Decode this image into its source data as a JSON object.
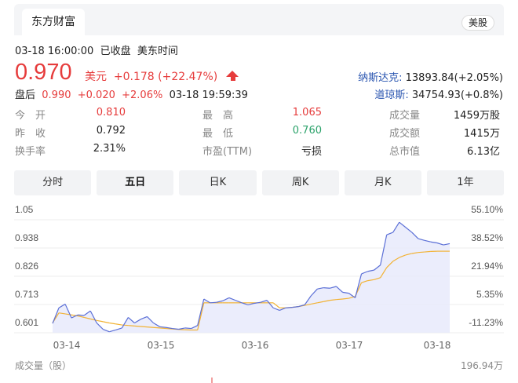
{
  "header": {
    "tab": "东方财富",
    "market_badge": "美股"
  },
  "status": {
    "time": "03-18 16:00:00",
    "state": "已收盘",
    "timezone": "美东时间"
  },
  "quote": {
    "price": "0.970",
    "currency": "美元",
    "change": "+0.178 (+22.47%)",
    "direction_icon": "arrow-up-icon"
  },
  "after_hours": {
    "label": "盘后",
    "price": "0.990",
    "change": "+0.020",
    "pct": "+2.06%",
    "time": "03-18 19:59:39"
  },
  "indices": [
    {
      "name": "纳斯达克:",
      "value": "13893.84(+2.05%)"
    },
    {
      "name": "道琼斯:",
      "value": "34754.93(+0.8%)"
    }
  ],
  "stats": [
    [
      {
        "label": "今　开",
        "value": "0.810",
        "color": "red"
      },
      {
        "label": "最　高",
        "value": "1.065",
        "color": "red"
      },
      {
        "label": "成交量",
        "value": "1459万股",
        "color": "black"
      }
    ],
    [
      {
        "label": "昨　收",
        "value": "0.792",
        "color": "black"
      },
      {
        "label": "最　低",
        "value": "0.760",
        "color": "green"
      },
      {
        "label": "成交额",
        "value": "1415万",
        "color": "black"
      }
    ],
    [
      {
        "label": "换手率",
        "value": "2.31%",
        "color": "black"
      },
      {
        "label": "市盈(TTM)",
        "value": "亏损",
        "color": "black"
      },
      {
        "label": "总市值",
        "value": "6.13亿",
        "color": "black"
      }
    ]
  ],
  "period_tabs": [
    "分时",
    "五日",
    "日K",
    "周K",
    "月K",
    "1年"
  ],
  "selected_tab": "五日",
  "chart_data": {
    "type": "line",
    "y_ticks": [
      "1.05",
      "0.938",
      "0.826",
      "0.713",
      "0.601"
    ],
    "y_pct_ticks": [
      "55.10%",
      "38.52%",
      "21.94%",
      "5.35%",
      "-11.23%"
    ],
    "x_ticks": [
      "03-14",
      "03-15",
      "03-16",
      "03-17",
      "03-18"
    ],
    "ylim": [
      0.601,
      1.05
    ],
    "colors": {
      "price": "#5b6fd6",
      "average": "#f2b233",
      "fill": "#e6e9fb"
    },
    "series": [
      {
        "key": "price",
        "values": [
          0.638,
          0.7,
          0.715,
          0.66,
          0.672,
          0.67,
          0.688,
          0.64,
          0.615,
          0.605,
          0.612,
          0.62,
          0.662,
          0.64,
          0.655,
          0.665,
          0.64,
          0.625,
          0.622,
          0.618,
          0.615,
          0.62,
          0.618,
          0.63,
          0.735,
          0.72,
          0.722,
          0.728,
          0.74,
          0.73,
          0.72,
          0.712,
          0.718,
          0.722,
          0.73,
          0.7,
          0.69,
          0.7,
          0.702,
          0.705,
          0.712,
          0.748,
          0.775,
          0.78,
          0.778,
          0.785,
          0.762,
          0.758,
          0.74,
          0.835,
          0.845,
          0.85,
          0.87,
          0.99,
          1.0,
          1.04,
          1.02,
          1.0,
          0.975,
          0.968,
          0.962,
          0.958,
          0.95,
          0.955
        ]
      },
      {
        "key": "average",
        "values": [
          0.64,
          0.68,
          0.676,
          0.672,
          0.668,
          0.662,
          0.656,
          0.65,
          0.645,
          0.64,
          0.636,
          0.632,
          0.63,
          0.628,
          0.626,
          0.624,
          0.622,
          0.62,
          0.618,
          0.616,
          0.614,
          0.613,
          0.612,
          0.612,
          0.72,
          0.72,
          0.72,
          0.72,
          0.72,
          0.72,
          0.72,
          0.72,
          0.72,
          0.72,
          0.72,
          0.72,
          0.7,
          0.7,
          0.702,
          0.705,
          0.71,
          0.715,
          0.72,
          0.725,
          0.73,
          0.733,
          0.735,
          0.738,
          0.745,
          0.8,
          0.808,
          0.812,
          0.82,
          0.86,
          0.885,
          0.9,
          0.91,
          0.916,
          0.92,
          0.922,
          0.924,
          0.925,
          0.925,
          0.925
        ]
      }
    ]
  },
  "volume": {
    "label": "成交量（股）",
    "max": "196.94万"
  }
}
